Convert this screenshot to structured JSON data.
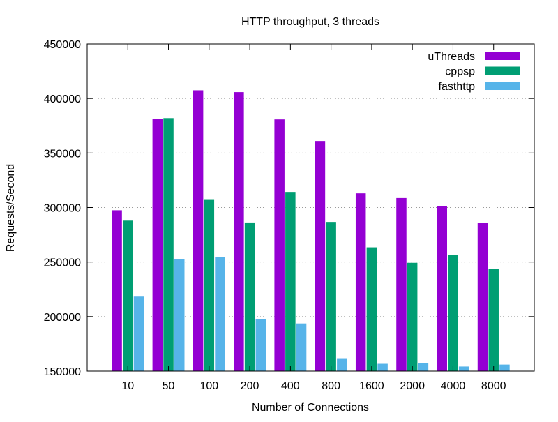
{
  "chart_data": {
    "type": "bar",
    "title": "HTTP throughput, 3 threads",
    "xlabel": "Number of Connections",
    "ylabel": "Requests/Second",
    "ylim": [
      150000,
      450000
    ],
    "yticks": [
      150000,
      200000,
      250000,
      300000,
      350000,
      400000,
      450000
    ],
    "grid": "horizontal dotted",
    "legend_position": "top-right",
    "categories": [
      "10",
      "50",
      "100",
      "200",
      "400",
      "800",
      "1600",
      "2000",
      "4000",
      "8000"
    ],
    "series": [
      {
        "name": "uThreads",
        "color": "#9400d3",
        "values": [
          297500,
          381500,
          407500,
          405800,
          380800,
          361000,
          313000,
          308700,
          301000,
          285700
        ]
      },
      {
        "name": "cppsp",
        "color": "#009e73",
        "values": [
          288000,
          382000,
          307000,
          286300,
          314300,
          286800,
          263500,
          249300,
          256300,
          243600
        ]
      },
      {
        "name": "fasthttp",
        "color": "#56b4e9",
        "values": [
          218300,
          252400,
          254400,
          197500,
          193700,
          161800,
          156700,
          157300,
          154200,
          156000
        ]
      }
    ]
  }
}
